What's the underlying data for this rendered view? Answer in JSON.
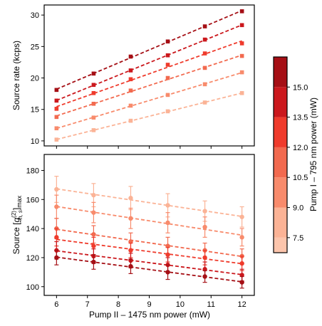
{
  "chart_data": [
    {
      "type": "line",
      "panel": "top",
      "ylabel": "Source rate (kcps)",
      "xlabel": "",
      "xlim": [
        5.6,
        12.4
      ],
      "ylim": [
        9.2,
        31.6
      ],
      "xticks": [
        6,
        7,
        8,
        9,
        10,
        11,
        12
      ],
      "yticks": [
        10,
        15,
        20,
        25,
        30
      ],
      "grid": false,
      "marker": "square",
      "line_style": "dashed-fit",
      "series": [
        {
          "pump1_mW": 15.75,
          "color": "#a50f15",
          "x": [
            6,
            7.2,
            8.4,
            9.6,
            10.8,
            12
          ],
          "y": [
            18.1,
            20.7,
            23.4,
            25.8,
            28.2,
            30.6
          ]
        },
        {
          "pump1_mW": 14.25,
          "color": "#cb181d",
          "x": [
            6,
            7.2,
            8.4,
            9.6,
            10.8,
            12
          ],
          "y": [
            16.4,
            18.9,
            21.2,
            23.6,
            26.1,
            28.4
          ]
        },
        {
          "pump1_mW": 12.75,
          "color": "#ef3b2c",
          "x": [
            6,
            7.2,
            8.4,
            9.6,
            10.8,
            12
          ],
          "y": [
            15.1,
            17.6,
            19.8,
            22.1,
            23.9,
            25.5
          ]
        },
        {
          "pump1_mW": 11.25,
          "color": "#f26a4f",
          "x": [
            6,
            7.2,
            8.4,
            9.6,
            10.8,
            12
          ],
          "y": [
            13.8,
            15.9,
            18.0,
            20.0,
            21.6,
            23.5
          ]
        },
        {
          "pump1_mW": 9.75,
          "color": "#f88b6c",
          "x": [
            6,
            7.2,
            8.4,
            9.6,
            10.8,
            12
          ],
          "y": [
            12.0,
            13.7,
            15.6,
            17.3,
            19.0,
            20.9
          ]
        },
        {
          "pump1_mW": 8.25,
          "color": "#fbb396",
          "x": [
            6,
            7.2,
            8.4,
            9.6,
            10.8,
            12
          ],
          "y": [
            10.2,
            11.7,
            13.2,
            14.7,
            16.1,
            17.6
          ]
        }
      ]
    },
    {
      "type": "line",
      "panel": "bottom",
      "ylabel_parts": {
        "main": "Source [",
        "g": "g",
        "sup": "(2)",
        "sub": "h, s",
        "close": "]",
        "max": "max"
      },
      "xlabel": "Pump II – 1475 nm power (mW)",
      "xlim": [
        5.6,
        12.4
      ],
      "ylim": [
        94,
        191
      ],
      "xticks": [
        6,
        7,
        8,
        9,
        10,
        11,
        12
      ],
      "yticks": [
        100,
        120,
        140,
        160,
        180
      ],
      "grid": false,
      "marker": "circle",
      "line_style": "dashed-fit",
      "error_bars": true,
      "series": [
        {
          "pump1_mW": 8.25,
          "color": "#fbb396",
          "x": [
            6,
            7.2,
            8.4,
            9.6,
            10.8,
            12
          ],
          "y": [
            167,
            163,
            161,
            156,
            152,
            148
          ],
          "err": [
            9,
            8,
            8,
            8,
            7,
            7
          ]
        },
        {
          "pump1_mW": 9.75,
          "color": "#f88b6c",
          "x": [
            6,
            7.2,
            8.4,
            9.6,
            10.8,
            12
          ],
          "y": [
            155,
            151,
            147,
            144,
            141,
            134
          ],
          "err": [
            8,
            7,
            7,
            7,
            7,
            6
          ]
        },
        {
          "pump1_mW": 11.25,
          "color": "#f26a4f",
          "x": [
            6,
            7.2,
            8.4,
            9.6,
            10.8,
            12
          ],
          "y": [
            140,
            136,
            131,
            128,
            125,
            121
          ],
          "err": [
            7,
            6,
            6,
            6,
            5,
            5
          ]
        },
        {
          "pump1_mW": 12.75,
          "color": "#ef3b2c",
          "x": [
            6,
            7.2,
            8.4,
            9.6,
            10.8,
            12
          ],
          "y": [
            134,
            128,
            125,
            122,
            120,
            116
          ],
          "err": [
            6,
            6,
            5,
            5,
            5,
            5
          ]
        },
        {
          "pump1_mW": 14.25,
          "color": "#cb181d",
          "x": [
            6,
            7.2,
            8.4,
            9.6,
            10.8,
            12
          ],
          "y": [
            125,
            121,
            118,
            115,
            112,
            108
          ],
          "err": [
            6,
            5,
            5,
            5,
            5,
            4
          ]
        },
        {
          "pump1_mW": 15.75,
          "color": "#a50f15",
          "x": [
            6,
            7.2,
            8.4,
            9.6,
            10.8,
            12
          ],
          "y": [
            120,
            117,
            114,
            110,
            107,
            103
          ],
          "err": [
            5,
            5,
            5,
            5,
            4,
            4
          ]
        }
      ]
    }
  ],
  "colorbar": {
    "label": "Pump I – 795 nm power (mW)",
    "range": [
      6.75,
      16.5
    ],
    "ticks": [
      7.5,
      9.0,
      10.5,
      12.0,
      13.5,
      15.0
    ],
    "tick_labels": [
      "7.5",
      "9.0",
      "10.5",
      "12.0",
      "13.5",
      "15.0"
    ],
    "bands": [
      {
        "from": 6.75,
        "to": 7.5,
        "color": "#fcc5ac"
      },
      {
        "from": 7.5,
        "to": 9.0,
        "color": "#fbb396"
      },
      {
        "from": 9.0,
        "to": 10.5,
        "color": "#f88b6c"
      },
      {
        "from": 10.5,
        "to": 12.0,
        "color": "#f26a4f"
      },
      {
        "from": 12.0,
        "to": 13.5,
        "color": "#ef3b2c"
      },
      {
        "from": 13.5,
        "to": 15.0,
        "color": "#cb181d"
      },
      {
        "from": 15.0,
        "to": 16.5,
        "color": "#a50f15"
      }
    ]
  }
}
